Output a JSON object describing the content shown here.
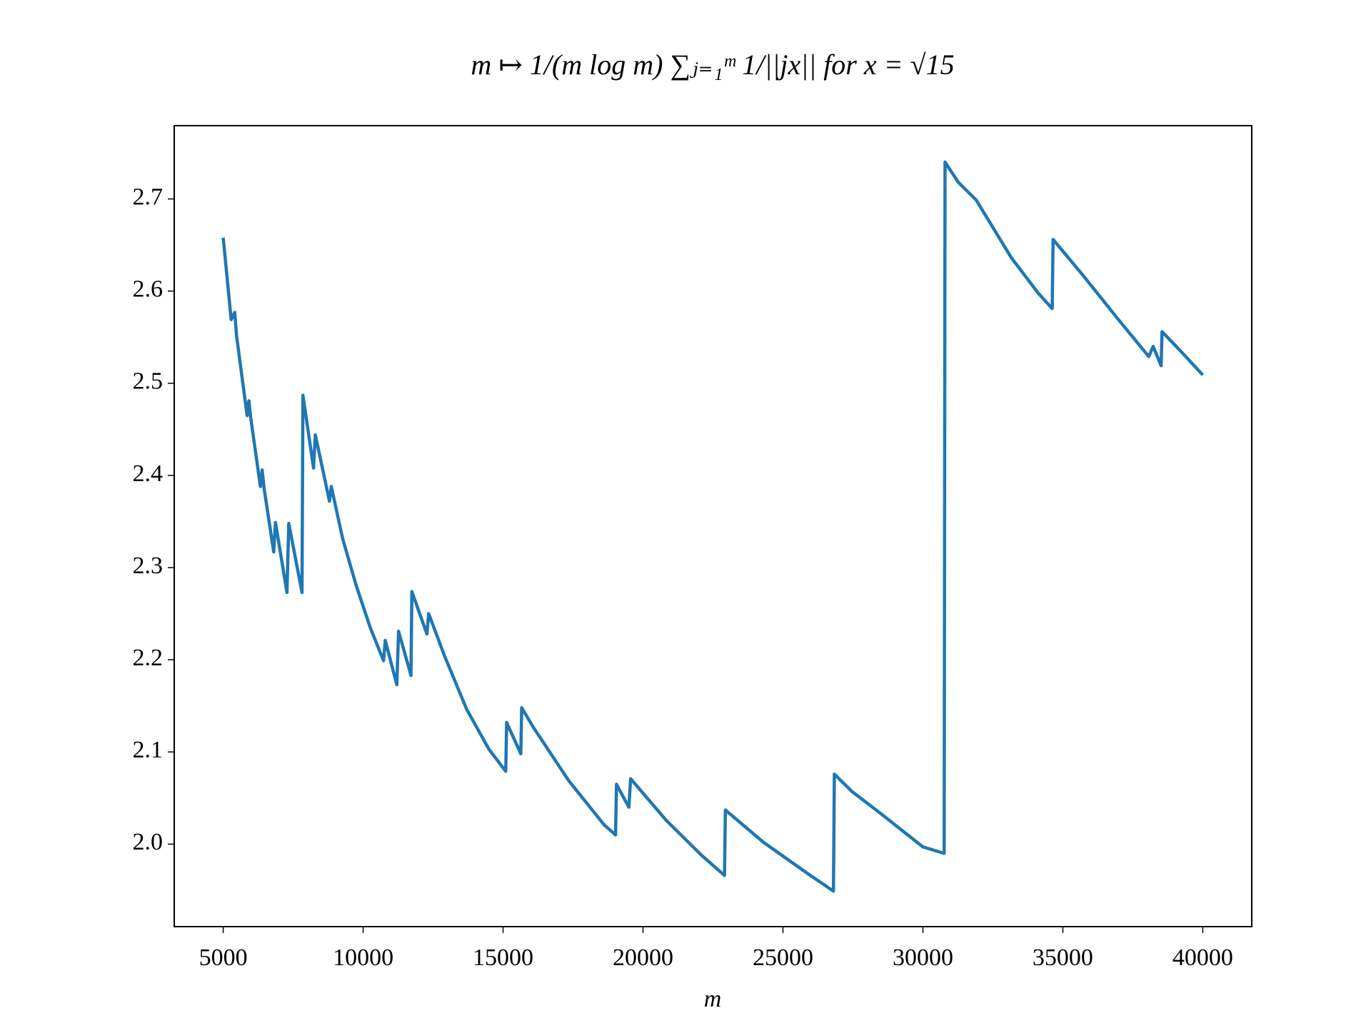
{
  "chart_data": {
    "type": "line",
    "title": "m ↦ 1/(m log m) ∑ⱼ₌₁ᵐ 1/||jx|| for x = √15",
    "x_label": "m",
    "x": [
      5000,
      5285,
      5411,
      5475,
      5854,
      5918,
      5981,
      6329,
      6392,
      6456,
      6804,
      6867,
      7278,
      7342,
      7816,
      7848,
      8228,
      8291,
      8797,
      8861,
      9272,
      9747,
      10253,
      10728,
      10791,
      11203,
      11266,
      11709,
      11741,
      12278,
      12342,
      12911,
      13703,
      14494,
      15095,
      15127,
      15633,
      15665,
      16076,
      17342,
      18608,
      19019,
      19051,
      19494,
      19557,
      20823,
      22089,
      22911,
      22943,
      24304,
      25886,
      26804,
      26836,
      27468,
      28418,
      30000,
      30760,
      30791,
      31266,
      31899,
      33165,
      34114,
      34620,
      34652,
      35696,
      36962,
      38070,
      38228,
      38513,
      38544,
      39177,
      40000
    ],
    "series": [
      {
        "color": "#1f77b4",
        "values": [
          2.658,
          2.569,
          2.577,
          2.552,
          2.465,
          2.481,
          2.463,
          2.388,
          2.406,
          2.387,
          2.317,
          2.349,
          2.273,
          2.348,
          2.273,
          2.487,
          2.408,
          2.444,
          2.372,
          2.388,
          2.331,
          2.281,
          2.235,
          2.199,
          2.221,
          2.173,
          2.231,
          2.183,
          2.274,
          2.228,
          2.25,
          2.204,
          2.146,
          2.103,
          2.079,
          2.132,
          2.098,
          2.148,
          2.127,
          2.069,
          2.021,
          2.01,
          2.065,
          2.04,
          2.071,
          2.026,
          1.988,
          1.966,
          2.037,
          2.002,
          1.968,
          1.949,
          2.076,
          2.057,
          2.035,
          1.997,
          1.99,
          2.74,
          2.718,
          2.699,
          2.636,
          2.598,
          2.581,
          2.656,
          2.618,
          2.57,
          2.529,
          2.54,
          2.519,
          2.556,
          2.536,
          2.509
        ]
      }
    ],
    "xlim": [
      3250,
      41750
    ],
    "xticks": [
      5000,
      10000,
      15000,
      20000,
      25000,
      30000,
      35000,
      40000
    ],
    "ylim": [
      1.9105,
      2.7795
    ],
    "yticks": [
      {
        "value": 2.0,
        "label": "2.0"
      },
      2.1,
      2.2,
      2.3,
      2.4,
      2.5,
      2.6,
      2.7
    ],
    "grid": false
  }
}
